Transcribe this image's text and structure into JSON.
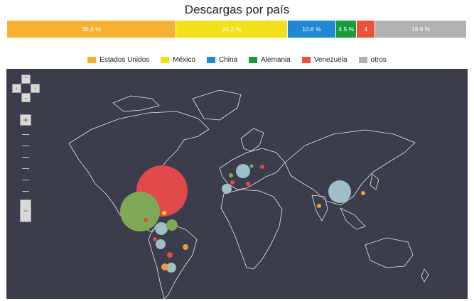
{
  "chart_data": {
    "type": "bar",
    "title": "Descargas por país",
    "categories": [
      "Estados Unidos",
      "México",
      "China",
      "Alemania",
      "Venezuela",
      "otros"
    ],
    "values": [
      36.8,
      24.2,
      10.6,
      4.5,
      4,
      19.9
    ],
    "value_labels": [
      "36.8 %",
      "24.2 %",
      "10.6 %",
      "4.5 %",
      "4",
      "19.9 %"
    ],
    "colors": [
      "#f7b234",
      "#f2e11a",
      "#1e88d2",
      "#1d9a3c",
      "#e8533a",
      "#b1b1b1"
    ],
    "stacked_percent": true,
    "legend_placement": "top-center"
  },
  "map": {
    "background_color": "#3b3c4c",
    "land_outline_color": "#ffffff",
    "bubble_colors": {
      "Estados Unidos": "#e2494a",
      "México": "#7da956",
      "China": "#9fbfc8",
      "other": "#9fbfc8"
    },
    "controls": {
      "pan_up": "⌃",
      "pan_down": "⌄",
      "pan_left": "‹",
      "pan_right": "›",
      "zoom_in": "+",
      "zoom_out": "−"
    }
  }
}
